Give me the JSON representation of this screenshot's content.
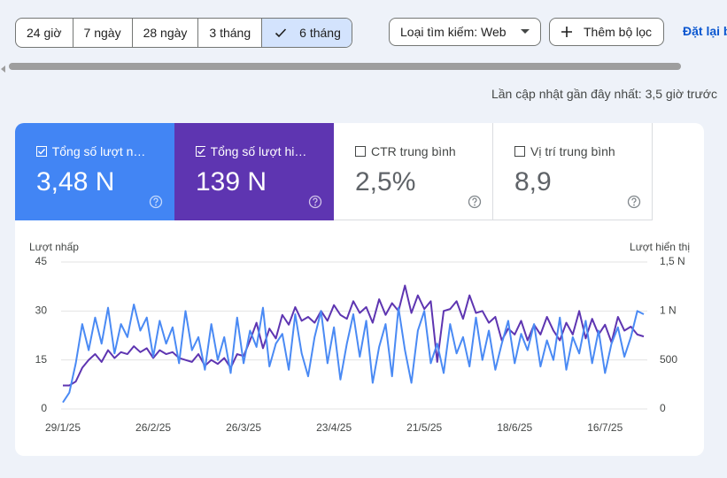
{
  "filters": {
    "ranges": [
      "24 giờ",
      "7 ngày",
      "28 ngày",
      "3 tháng",
      "6 tháng"
    ],
    "search_type": "Loại tìm kiếm: Web",
    "add_filter": "Thêm bộ lọc",
    "reset": "Đặt lại bộ lọc"
  },
  "updated": "Lần cập nhật gần đây nhất: 3,5 giờ trước",
  "metrics": [
    {
      "label": "Tổng số lượt nhấp",
      "value": "3,48 N"
    },
    {
      "label": "Tổng số lượt hiển thị",
      "value": "139 N"
    },
    {
      "label": "CTR trung bình",
      "value": "2,5%"
    },
    {
      "label": "Vị trí trung bình",
      "value": "8,9"
    }
  ],
  "chart_data": {
    "type": "line",
    "ylabel": "Lượt nhấp",
    "y2label": "Lượt hiển thị",
    "categories": [
      "29/1/25",
      null,
      null,
      null,
      null,
      null,
      null,
      null,
      null,
      null,
      null,
      null,
      null,
      null,
      "26/2/25",
      null,
      null,
      null,
      null,
      null,
      null,
      null,
      null,
      null,
      null,
      null,
      null,
      null,
      "26/3/25",
      null,
      null,
      null,
      null,
      null,
      null,
      null,
      null,
      null,
      null,
      null,
      null,
      null,
      "23/4/25",
      null,
      null,
      null,
      null,
      null,
      null,
      null,
      null,
      null,
      null,
      null,
      null,
      null,
      "21/5/25",
      null,
      null,
      null,
      null,
      null,
      null,
      null,
      null,
      null,
      null,
      null,
      null,
      null,
      "18/6/25",
      null,
      null,
      null,
      null,
      null,
      null,
      null,
      null,
      null,
      null,
      null,
      null,
      null,
      "16/7/25",
      null,
      null,
      null,
      null,
      null,
      null
    ],
    "series": [
      {
        "color": "#4a8af4",
        "values": [
          2,
          5,
          14,
          26,
          18,
          28,
          20,
          31,
          17,
          26,
          22,
          32,
          24,
          28,
          16,
          27,
          20,
          25,
          14,
          30,
          18,
          22,
          12,
          26,
          15,
          22,
          11,
          28,
          14,
          24,
          19,
          31,
          13,
          20,
          23,
          12,
          29,
          17,
          10,
          22,
          30,
          14,
          25,
          9,
          20,
          29,
          16,
          27,
          8,
          19,
          26,
          10,
          31,
          18,
          8,
          24,
          30,
          14,
          20,
          11,
          26,
          17,
          22,
          13,
          28,
          15,
          24,
          12,
          20,
          27,
          14,
          23,
          18,
          26,
          13,
          21,
          15,
          28,
          12,
          22,
          17,
          27,
          14,
          24,
          11,
          20,
          25,
          16,
          22,
          30,
          29
        ]
      },
      {
        "color": "#5e35b1",
        "axis": "y2",
        "values": [
          240,
          240,
          280,
          420,
          500,
          560,
          480,
          600,
          520,
          580,
          560,
          640,
          580,
          620,
          520,
          600,
          560,
          580,
          520,
          500,
          480,
          560,
          440,
          500,
          460,
          520,
          420,
          560,
          540,
          700,
          880,
          620,
          820,
          720,
          960,
          860,
          1040,
          900,
          940,
          880,
          1000,
          900,
          1060,
          960,
          920,
          1100,
          980,
          1040,
          880,
          1120,
          960,
          1080,
          1000,
          1260,
          980,
          1160,
          1020,
          1100,
          480,
          1000,
          1020,
          1100,
          920,
          1160,
          980,
          1000,
          880,
          940,
          700,
          820,
          760,
          900,
          700,
          860,
          760,
          940,
          800,
          700,
          880,
          760,
          1000,
          720,
          920,
          760,
          860,
          680,
          940,
          800,
          840,
          760,
          740
        ]
      }
    ],
    "ylim": [
      0,
      45
    ],
    "yticks": [
      0,
      15,
      30,
      45
    ],
    "y2lim": [
      0,
      1500
    ],
    "y2ticks": [
      0,
      500,
      {
        "value": 1000,
        "label": "1 N"
      },
      {
        "value": 1500,
        "label": "1,5 N"
      }
    ],
    "grid": true
  }
}
